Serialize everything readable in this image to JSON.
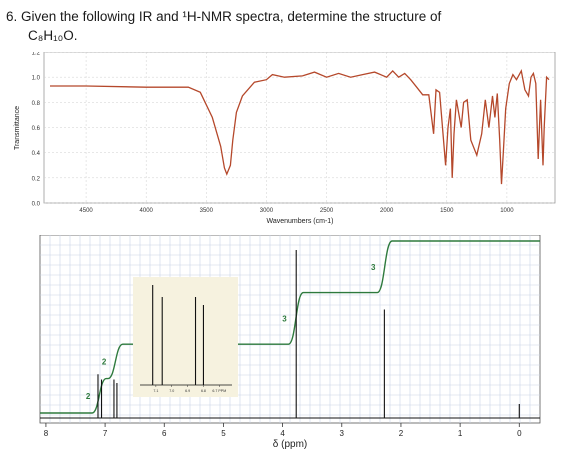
{
  "question": {
    "number": "6.",
    "text": "Given the following IR and ¹H-NMR spectra, determine the structure of",
    "formula": "C₈H₁₀O."
  },
  "chart_data": [
    {
      "type": "line",
      "title": "",
      "xlabel": "Wavenumbers (cm-1)",
      "ylabel": "Transmittance",
      "x_ticks": [
        4500,
        4000,
        3500,
        3000,
        2500,
        2000,
        1500,
        1000
      ],
      "x_tick_labels": [
        "4500",
        "4000",
        "3500",
        "3000",
        "2500",
        "2000",
        "1500",
        "1000"
      ],
      "y_ticks": [
        0.0,
        0.2,
        0.4,
        0.6,
        0.8,
        1.0,
        1.2
      ],
      "y_tick_labels": [
        "0.0",
        "0.2",
        "0.4",
        "0.6",
        "0.8",
        "1.0",
        "1.2"
      ],
      "xlim": [
        4850,
        600
      ],
      "ylim": [
        0.0,
        1.2
      ],
      "grid": true,
      "color": "#b5482b",
      "series": [
        {
          "x": [
            4800,
            4500,
            4000,
            3650,
            3550,
            3450,
            3380,
            3350,
            3330,
            3300,
            3280,
            3250,
            3200,
            3100,
            3000,
            2950,
            2850,
            2700,
            2600,
            2500,
            2400,
            2300,
            2200,
            2100,
            2000,
            1950,
            1900,
            1850,
            1800,
            1750,
            1700,
            1650,
            1610,
            1590,
            1560,
            1510,
            1490,
            1470,
            1455,
            1440,
            1420,
            1380,
            1360,
            1330,
            1300,
            1250,
            1210,
            1180,
            1150,
            1120,
            1100,
            1080,
            1060,
            1045,
            1030,
            1010,
            980,
            950,
            920,
            880,
            850,
            820,
            800,
            780,
            760,
            740,
            720,
            700,
            690,
            670,
            650
          ],
          "y": [
            0.93,
            0.93,
            0.92,
            0.92,
            0.88,
            0.68,
            0.45,
            0.28,
            0.23,
            0.3,
            0.5,
            0.72,
            0.85,
            0.96,
            0.98,
            1.02,
            1.0,
            1.01,
            1.04,
            1.0,
            1.03,
            1.0,
            1.02,
            1.04,
            1.0,
            1.05,
            1.0,
            1.03,
            0.98,
            0.92,
            0.86,
            0.86,
            0.55,
            0.9,
            0.88,
            0.3,
            0.6,
            0.75,
            0.2,
            0.55,
            0.82,
            0.6,
            0.8,
            0.82,
            0.5,
            0.38,
            0.55,
            0.82,
            0.6,
            0.85,
            0.68,
            0.87,
            0.5,
            0.15,
            0.4,
            0.75,
            0.95,
            1.02,
            0.98,
            1.05,
            0.9,
            0.85,
            1.0,
            1.03,
            0.95,
            0.35,
            0.82,
            0.3,
            0.6,
            1.0,
            0.98
          ]
        }
      ]
    },
    {
      "type": "line",
      "title": "",
      "xlabel": "δ (ppm)",
      "ylabel": "",
      "x_ticks": [
        8,
        7,
        6,
        5,
        4,
        3,
        2,
        1,
        0
      ],
      "x_tick_labels": [
        "8",
        "7",
        "6",
        "5",
        "4",
        "3",
        "2",
        "1",
        "0"
      ],
      "xlim": [
        8.1,
        -0.35
      ],
      "ylim": [
        0,
        1
      ],
      "grid": true,
      "peaks": [
        {
          "ppm": 7.12,
          "height": 0.25
        },
        {
          "ppm": 7.06,
          "height": 0.22
        },
        {
          "ppm": 6.85,
          "height": 0.22
        },
        {
          "ppm": 6.8,
          "height": 0.2
        },
        {
          "ppm": 3.77,
          "height": 0.96
        },
        {
          "ppm": 2.28,
          "height": 0.62
        },
        {
          "ppm": 0.0,
          "height": 0.08
        }
      ],
      "integrals": [
        {
          "label": "2",
          "ppm_start": 7.22,
          "ppm_end": 6.98
        },
        {
          "label": "2",
          "ppm_start": 6.95,
          "ppm_end": 6.7
        },
        {
          "label": "3",
          "ppm_start": 3.9,
          "ppm_end": 3.65
        },
        {
          "label": "3",
          "ppm_start": 2.4,
          "ppm_end": 2.15
        }
      ],
      "inset": {
        "x_ticks": [
          7.1,
          7.0,
          6.9,
          6.8,
          6.7
        ],
        "x_tick_labels": [
          "7.1",
          "7.0",
          "6.9",
          "6.8",
          "6.7 PPM"
        ],
        "xlim": [
          7.2,
          6.62
        ]
      }
    }
  ]
}
